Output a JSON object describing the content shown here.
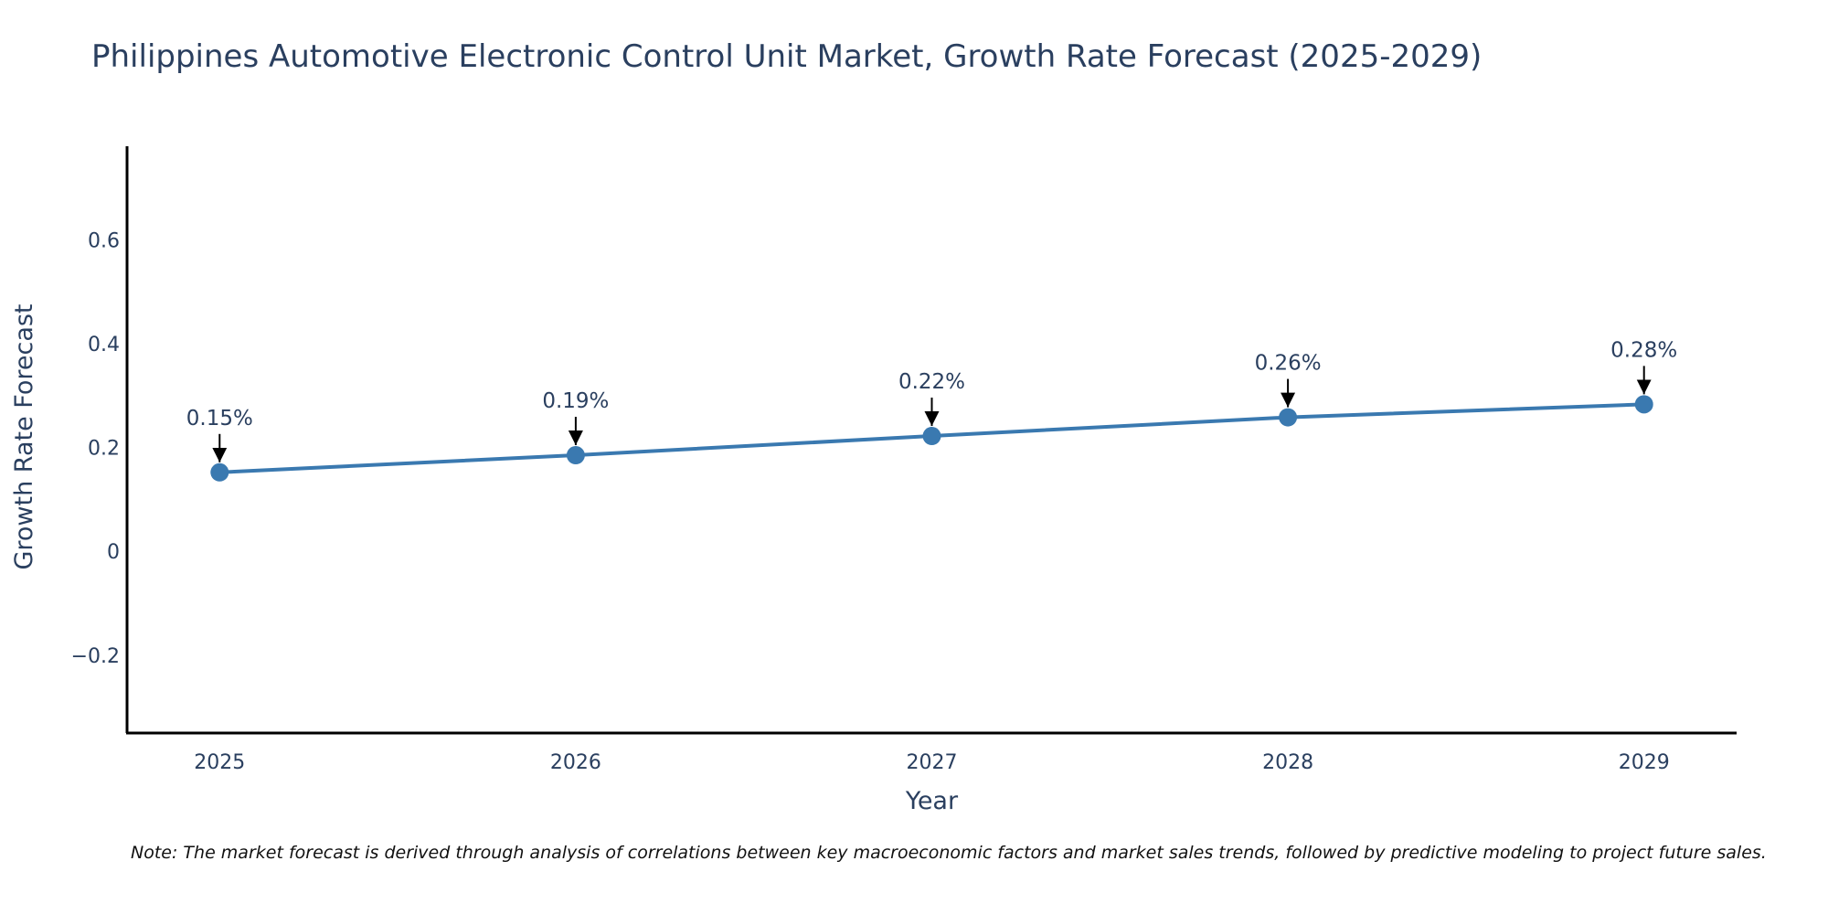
{
  "chart_data": {
    "type": "line",
    "title": "Philippines Automotive Electronic Control Unit Market, Growth Rate Forecast (2025-2029)",
    "xlabel": "Year",
    "ylabel": "Growth Rate Forecast",
    "x": [
      "2025",
      "2026",
      "2027",
      "2028",
      "2029"
    ],
    "series": [
      {
        "name": "Growth Rate Forecast",
        "values": [
          0.152,
          0.185,
          0.222,
          0.258,
          0.283
        ],
        "labels": [
          "0.15%",
          "0.19%",
          "0.22%",
          "0.26%",
          "0.28%"
        ],
        "color": "#3a79b0"
      }
    ],
    "xlim": [
      2024.74,
      2029.26
    ],
    "ylim": [
      -0.35,
      0.78
    ],
    "yticks": [
      -0.2,
      0,
      0.2,
      0.4,
      0.6
    ],
    "ytick_labels": [
      "−0.2",
      "0",
      "0.2",
      "0.4",
      "0.6"
    ],
    "grid": false,
    "legend": "none"
  },
  "note": "Note: The market forecast is derived through analysis of correlations between key macroeconomic factors and market sales trends, followed by predictive modeling to project future sales.",
  "colors": {
    "line": "#3a79b0",
    "text": "#2a3f5f",
    "axis": "#000000"
  }
}
